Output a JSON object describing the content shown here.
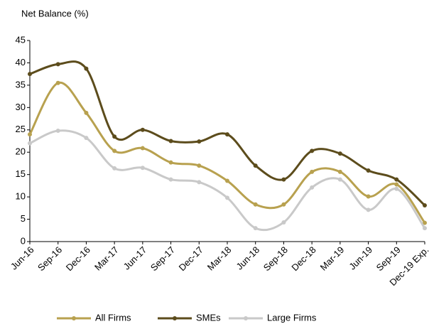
{
  "chart_data": {
    "type": "line",
    "title": "Net Balance (%)",
    "categories": [
      "Jun-16",
      "Sep-16",
      "Dec-16",
      "Mar-17",
      "Jun-17",
      "Sep-17",
      "Dec-17",
      "Mar-18",
      "Jun-18",
      "Sep-18",
      "Dec-18",
      "Mar-19",
      "Jun-19",
      "Sep-19",
      "Dec-19 Exp."
    ],
    "series": [
      {
        "name": "All Firms",
        "color": "#b8a14f",
        "values": [
          24,
          35.5,
          28.8,
          20.3,
          20.9,
          17.7,
          17,
          13.6,
          8.3,
          8.3,
          15.6,
          15.6,
          10.1,
          12.8,
          4.2
        ]
      },
      {
        "name": "SMEs",
        "color": "#5c4c1c",
        "values": [
          37.5,
          39.7,
          38.7,
          23.5,
          25,
          22.5,
          22.4,
          24,
          17,
          13.9,
          20.3,
          19.7,
          15.9,
          13.9,
          8.1
        ]
      },
      {
        "name": "Large Firms",
        "color": "#c9c9c9",
        "values": [
          22,
          24.8,
          23.2,
          16.4,
          16.5,
          13.9,
          13.3,
          9.8,
          3,
          4.3,
          12.1,
          13.9,
          7.1,
          11.8,
          3
        ]
      }
    ],
    "ylim": [
      0,
      45
    ],
    "yticks": [
      0,
      5,
      10,
      15,
      20,
      25,
      30,
      35,
      40,
      45
    ],
    "smooth": true,
    "legend": "bottom"
  }
}
